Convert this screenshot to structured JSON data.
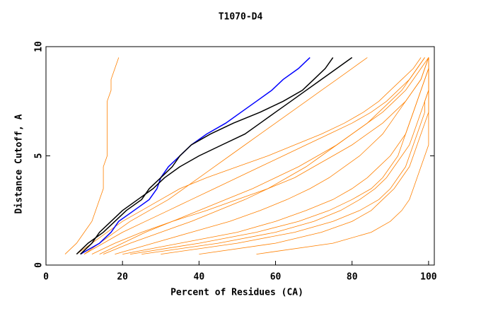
{
  "chart_data": {
    "type": "line",
    "title": "T1070-D4",
    "xlabel": "Percent of Residues (CA)",
    "ylabel": "Distance Cutoff, A",
    "xlim": [
      0,
      101.5
    ],
    "ylim": [
      0,
      10
    ],
    "xticks": [
      0,
      20,
      40,
      60,
      80,
      100
    ],
    "yticks": [
      0,
      5,
      10
    ],
    "series": [
      {
        "color": "#ff8000",
        "x": [
          5,
          8,
          10,
          12,
          13,
          14,
          15,
          15,
          15,
          16,
          16,
          16,
          16,
          16,
          16,
          17,
          17,
          18,
          19
        ],
        "values": [
          0.5,
          1,
          1.5,
          2,
          2.5,
          3,
          3.5,
          4,
          4.5,
          5,
          5.5,
          6,
          6.5,
          7,
          7.5,
          8,
          8.5,
          9,
          9.5
        ]
      },
      {
        "color": "#ff8000",
        "x": [
          10,
          14,
          18,
          22,
          27,
          32,
          36,
          40,
          44,
          48,
          52,
          56,
          60,
          64,
          68,
          72,
          76,
          80,
          84
        ],
        "values": [
          0.5,
          1,
          1.5,
          2,
          2.5,
          3,
          3.5,
          4,
          4.5,
          5,
          5.5,
          6,
          6.5,
          7,
          7.5,
          8,
          8.5,
          9,
          9.5
        ]
      },
      {
        "color": "#ff8000",
        "x": [
          15,
          22,
          30,
          38,
          45,
          52,
          58,
          63,
          68,
          72,
          76,
          80,
          84,
          88,
          91,
          94,
          96,
          98,
          100
        ],
        "values": [
          0.5,
          1,
          1.5,
          2,
          2.5,
          3,
          3.5,
          4,
          4.5,
          5,
          5.5,
          6,
          6.5,
          7,
          7.5,
          8,
          8.5,
          9,
          9.5
        ]
      },
      {
        "color": "#ff8000",
        "x": [
          20,
          35,
          50,
          60,
          68,
          75,
          80,
          84,
          87,
          90,
          92,
          94,
          95,
          96,
          97,
          98,
          99,
          100,
          100
        ],
        "values": [
          0.5,
          1,
          1.5,
          2,
          2.5,
          3,
          3.5,
          4,
          4.5,
          5,
          5.5,
          6,
          6.5,
          7,
          7.5,
          8,
          8.5,
          9,
          9.5
        ]
      },
      {
        "color": "#ff8000",
        "x": [
          30,
          50,
          65,
          75,
          82,
          87,
          90,
          92,
          94,
          95,
          96,
          97,
          98,
          99,
          99,
          100,
          100,
          100,
          100
        ],
        "values": [
          0.5,
          1,
          1.5,
          2,
          2.5,
          3,
          3.5,
          4,
          4.5,
          5,
          5.5,
          6,
          6.5,
          7,
          7.5,
          8,
          8.5,
          9,
          9.5
        ]
      },
      {
        "color": "#ff8000",
        "x": [
          8,
          12,
          16,
          20,
          25,
          30,
          35,
          42,
          50,
          58,
          65,
          72,
          78,
          83,
          87,
          90,
          93,
          96,
          98
        ],
        "values": [
          0.5,
          1,
          1.5,
          2,
          2.5,
          3,
          3.5,
          4,
          4.5,
          5,
          5.5,
          6,
          6.5,
          7,
          7.5,
          8,
          8.5,
          9,
          9.5
        ]
      },
      {
        "color": "#ff8000",
        "x": [
          12,
          18,
          25,
          33,
          42,
          50,
          58,
          65,
          70,
          75,
          80,
          84,
          88,
          91,
          94,
          96,
          98,
          99,
          100
        ],
        "values": [
          0.5,
          1,
          1.5,
          2,
          2.5,
          3,
          3.5,
          4,
          4.5,
          5,
          5.5,
          6,
          6.5,
          7,
          7.5,
          8,
          8.5,
          9,
          9.5
        ]
      },
      {
        "color": "#ff8000",
        "x": [
          25,
          45,
          60,
          70,
          77,
          82,
          86,
          89,
          91,
          93,
          95,
          96,
          97,
          98,
          99,
          100,
          100,
          100,
          100
        ],
        "values": [
          0.5,
          1,
          1.5,
          2,
          2.5,
          3,
          3.5,
          4,
          4.5,
          5,
          5.5,
          6,
          6.5,
          7,
          7.5,
          8,
          8.5,
          9,
          9.5
        ]
      },
      {
        "color": "#ff8000",
        "x": [
          40,
          60,
          72,
          80,
          85,
          88,
          91,
          93,
          95,
          96,
          97,
          98,
          99,
          100,
          100,
          100,
          100,
          100,
          100
        ],
        "values": [
          0.5,
          1,
          1.5,
          2,
          2.5,
          3,
          3.5,
          4,
          4.5,
          5,
          5.5,
          6,
          6.5,
          7,
          7.5,
          8,
          8.5,
          9,
          9.5
        ]
      },
      {
        "color": "#ff8000",
        "x": [
          18,
          28,
          38,
          48,
          56,
          63,
          69,
          74,
          78,
          82,
          85,
          88,
          90,
          92,
          94,
          96,
          98,
          99,
          100
        ],
        "values": [
          0.5,
          1,
          1.5,
          2,
          2.5,
          3,
          3.5,
          4,
          4.5,
          5,
          5.5,
          6,
          6.5,
          7,
          7.5,
          8,
          8.5,
          9,
          9.5
        ]
      },
      {
        "color": "#ff8000",
        "x": [
          10,
          15,
          20,
          26,
          32,
          38,
          44,
          50,
          56,
          62,
          68,
          74,
          80,
          85,
          89,
          92,
          95,
          97,
          99
        ],
        "values": [
          0.5,
          1,
          1.5,
          2,
          2.5,
          3,
          3.5,
          4,
          4.5,
          5,
          5.5,
          6,
          6.5,
          7,
          7.5,
          8,
          8.5,
          9,
          9.5
        ]
      },
      {
        "color": "#ff8000",
        "x": [
          55,
          75,
          85,
          90,
          93,
          95,
          96,
          97,
          98,
          99,
          100,
          100,
          100,
          100,
          100,
          100,
          100,
          100,
          100
        ],
        "values": [
          0.5,
          1,
          1.5,
          2,
          2.5,
          3,
          3.5,
          4,
          4.5,
          5,
          5.5,
          6,
          6.5,
          7,
          7.5,
          8,
          8.5,
          9,
          9.5
        ]
      },
      {
        "color": "#ff8000",
        "x": [
          14,
          20,
          26,
          33,
          40,
          47,
          54,
          60,
          66,
          71,
          76,
          80,
          84,
          87,
          90,
          93,
          95,
          97,
          99
        ],
        "values": [
          0.5,
          1,
          1.5,
          2,
          2.5,
          3,
          3.5,
          4,
          4.5,
          5,
          5.5,
          6,
          6.5,
          7,
          7.5,
          8,
          8.5,
          9,
          9.5
        ]
      },
      {
        "color": "#ff8000",
        "x": [
          22,
          40,
          55,
          66,
          74,
          80,
          85,
          88,
          90,
          92,
          93,
          94,
          95,
          96,
          97,
          98,
          99,
          100,
          100
        ],
        "values": [
          0.5,
          1,
          1.5,
          2,
          2.5,
          3,
          3.5,
          4,
          4.5,
          5,
          5.5,
          6,
          6.5,
          7,
          7.5,
          8,
          8.5,
          9,
          9.5
        ]
      },
      {
        "color": "#0000ff",
        "x": [
          9,
          14,
          17,
          19,
          23,
          27,
          29,
          30,
          32,
          35,
          38,
          42,
          47,
          51,
          55,
          59,
          62,
          66,
          69
        ],
        "values": [
          0.5,
          1,
          1.5,
          2,
          2.5,
          3,
          3.5,
          4,
          4.5,
          5,
          5.5,
          6,
          6.5,
          7,
          7.5,
          8,
          8.5,
          9,
          9.5
        ]
      },
      {
        "color": "#000000",
        "x": [
          9,
          12,
          14,
          17,
          20,
          24,
          28,
          31,
          35,
          40,
          46,
          52,
          56,
          60,
          64,
          68,
          72,
          76,
          80
        ],
        "values": [
          0.5,
          1,
          1.5,
          2,
          2.5,
          3,
          3.5,
          4,
          4.5,
          5,
          5.5,
          6,
          6.5,
          7,
          7.5,
          8,
          8.5,
          9,
          9.5
        ]
      },
      {
        "color": "#000000",
        "x": [
          8,
          11,
          15,
          18,
          21,
          25,
          27,
          30,
          33,
          35,
          38,
          43,
          49,
          56,
          62,
          67,
          70,
          73,
          75
        ],
        "values": [
          0.5,
          1,
          1.5,
          2,
          2.5,
          3,
          3.5,
          4,
          4.5,
          5,
          5.5,
          6,
          6.5,
          7,
          7.5,
          8,
          8.5,
          9,
          9.5
        ]
      }
    ]
  }
}
